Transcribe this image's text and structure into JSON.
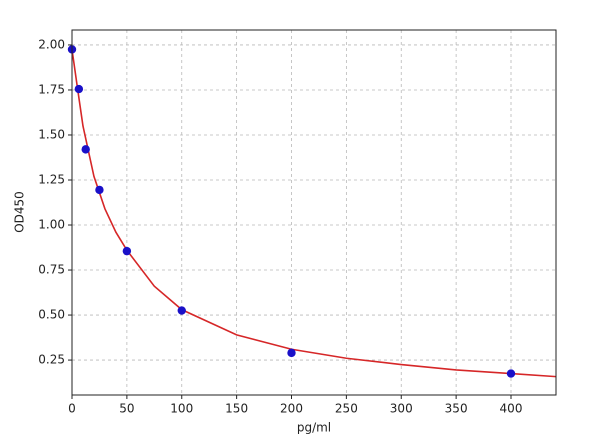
{
  "chart_data": {
    "type": "scatter",
    "xlabel": "pg/ml",
    "ylabel": "OD450",
    "points": {
      "x": [
        0,
        6.25,
        12.5,
        25,
        50,
        100,
        200,
        400
      ],
      "y": [
        1.975,
        1.755,
        1.42,
        1.195,
        0.855,
        0.525,
        0.29,
        0.175
      ],
      "color": "#1a10c8"
    },
    "curve": {
      "x": [
        0,
        5,
        10,
        20,
        30,
        40,
        50,
        75,
        100,
        150,
        200,
        250,
        300,
        350,
        400,
        441
      ],
      "y": [
        1.975,
        1.76,
        1.55,
        1.27,
        1.09,
        0.96,
        0.86,
        0.66,
        0.53,
        0.39,
        0.31,
        0.26,
        0.225,
        0.195,
        0.175,
        0.158
      ],
      "color": "#d62728"
    },
    "xlim": [
      0,
      441
    ],
    "ylim": [
      0.056,
      2.083
    ],
    "xticks": [
      0,
      50,
      100,
      150,
      200,
      250,
      300,
      350,
      400
    ],
    "yticks": [
      {
        "value": 0.25,
        "label": "0.25"
      },
      {
        "value": 0.5,
        "label": "0.50"
      },
      {
        "value": 0.75,
        "label": "0.75"
      },
      {
        "value": 1,
        "label": "1.00"
      },
      {
        "value": 1.25,
        "label": "1.25"
      },
      {
        "value": 1.5,
        "label": "1.50"
      },
      {
        "value": 1.75,
        "label": "1.75"
      },
      {
        "value": 2,
        "label": "2.00"
      }
    ],
    "grid": true
  }
}
